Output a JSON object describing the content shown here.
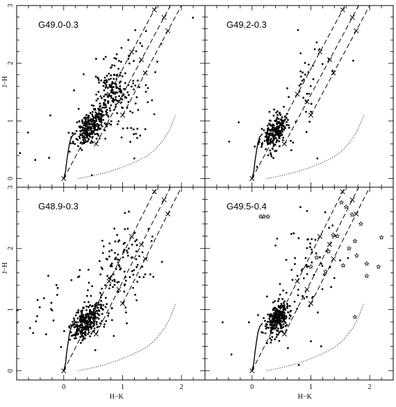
{
  "chart_data": {
    "type": "scatter",
    "shared": {
      "xlabel": "H−K",
      "ylabel": "J−H",
      "xlim": [
        -0.8,
        2.4
      ],
      "ylim": [
        -0.15,
        3.0
      ],
      "x_ticks": [
        "0",
        "1",
        "2"
      ],
      "y_ticks": [
        "0",
        "1",
        "2",
        "3"
      ],
      "reddening_line_starts": [
        [
          0.0,
          0.0
        ],
        [
          0.55,
          0.6
        ],
        [
          1.0,
          1.1
        ]
      ],
      "reddening_markers_av": [
        0,
        10,
        20,
        30,
        40
      ],
      "dwarf_locus": [
        [
          0.0,
          0.0
        ],
        [
          0.03,
          0.12
        ],
        [
          0.05,
          0.3
        ],
        [
          0.08,
          0.5
        ],
        [
          0.1,
          0.62
        ],
        [
          0.13,
          0.72
        ],
        [
          0.18,
          0.78
        ]
      ],
      "ctts_locus": [
        [
          0.25,
          0.0
        ],
        [
          0.45,
          0.04
        ],
        [
          0.7,
          0.1
        ],
        [
          0.95,
          0.18
        ],
        [
          1.2,
          0.28
        ],
        [
          1.4,
          0.38
        ],
        [
          1.55,
          0.5
        ],
        [
          1.7,
          0.68
        ],
        [
          1.8,
          0.85
        ],
        [
          1.9,
          1.1
        ]
      ]
    },
    "panels": [
      {
        "title": "G49.0-0.3",
        "stars": [],
        "clusters": [
          {
            "cx": 0.45,
            "cy": 0.9,
            "sx": 0.13,
            "sy": 0.13,
            "n": 260
          },
          {
            "cx": 0.8,
            "cy": 1.5,
            "sx": 0.14,
            "sy": 0.25,
            "n": 150
          },
          {
            "cx": 1.1,
            "cy": 1.6,
            "sx": 0.2,
            "sy": 0.6,
            "n": 60
          },
          {
            "cx": 0.3,
            "cy": 1.1,
            "sx": 0.8,
            "sy": 0.5,
            "n": 25
          }
        ],
        "seed": 11
      },
      {
        "title": "G49.2-0.3",
        "stars": [],
        "clusters": [
          {
            "cx": 0.38,
            "cy": 0.8,
            "sx": 0.1,
            "sy": 0.13,
            "n": 210
          },
          {
            "cx": 0.9,
            "cy": 1.6,
            "sx": 0.18,
            "sy": 0.5,
            "n": 35
          },
          {
            "cx": 0.5,
            "cy": 0.9,
            "sx": 0.5,
            "sy": 0.4,
            "n": 20
          }
        ],
        "seed": 23
      },
      {
        "title": "G48.9-0.3",
        "stars": [],
        "clusters": [
          {
            "cx": 0.38,
            "cy": 0.82,
            "sx": 0.12,
            "sy": 0.13,
            "n": 280
          },
          {
            "cx": 0.85,
            "cy": 1.55,
            "sx": 0.22,
            "sy": 0.35,
            "n": 90
          },
          {
            "cx": 1.2,
            "cy": 1.9,
            "sx": 0.25,
            "sy": 0.5,
            "n": 40
          },
          {
            "cx": -0.1,
            "cy": 1.2,
            "sx": 0.5,
            "sy": 0.4,
            "n": 30
          }
        ],
        "seed": 37
      },
      {
        "title": "G49.5-0.4",
        "stars": [
          [
            0.15,
            2.52
          ],
          [
            0.2,
            2.52
          ],
          [
            0.27,
            2.52
          ],
          [
            1.38,
            2.22
          ],
          [
            1.45,
            2.2
          ],
          [
            1.52,
            2.75
          ],
          [
            1.6,
            2.68
          ],
          [
            1.7,
            2.55
          ],
          [
            1.85,
            2.4
          ],
          [
            1.75,
            2.12
          ],
          [
            1.78,
            1.88
          ],
          [
            1.65,
            2.0
          ],
          [
            1.55,
            1.72
          ],
          [
            1.95,
            1.75
          ],
          [
            2.2,
            2.18
          ],
          [
            2.15,
            1.7
          ],
          [
            1.95,
            1.55
          ],
          [
            1.3,
            1.95
          ],
          [
            1.1,
            1.85
          ],
          [
            1.0,
            1.7
          ],
          [
            1.25,
            1.62
          ],
          [
            1.75,
            0.88
          ]
        ],
        "clusters": [
          {
            "cx": 0.45,
            "cy": 0.85,
            "sx": 0.1,
            "sy": 0.13,
            "n": 260
          },
          {
            "cx": 1.0,
            "cy": 1.8,
            "sx": 0.3,
            "sy": 0.5,
            "n": 60
          },
          {
            "cx": 0.6,
            "cy": 1.0,
            "sx": 0.6,
            "sy": 0.4,
            "n": 20
          }
        ],
        "seed": 53
      }
    ]
  }
}
